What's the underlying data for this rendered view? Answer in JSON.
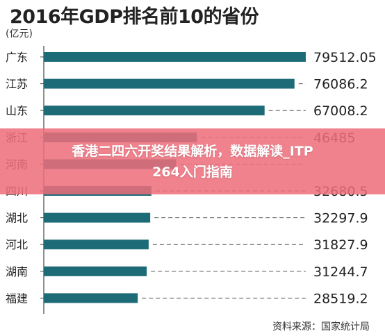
{
  "chart_data": {
    "type": "bar",
    "orientation": "horizontal",
    "title": "2016年GDP排名前10的省份",
    "unit": "(亿元)",
    "categories": [
      "广东",
      "江苏",
      "山东",
      "浙江",
      "河南",
      "四川",
      "湖北",
      "河北",
      "湖南",
      "福建"
    ],
    "values": [
      79512.05,
      76086.2,
      67008.2,
      46485,
      40160.01,
      32680.5,
      32297.9,
      31827.9,
      31244.7,
      28519.2
    ],
    "value_labels": [
      "79512.05",
      "76086.2",
      "67008.2",
      "46485",
      "",
      "32680.5",
      "32297.9",
      "31827.9",
      "31244.7",
      "28519.2"
    ],
    "xlim": [
      0,
      79512.05
    ],
    "grid": false,
    "bar_color": "#1e6b78",
    "source": "资料来源：国家统计局"
  },
  "overlay": {
    "line1": "香港二四六开奖结果解析，数据解读_ITP",
    "line2": "264入门指南",
    "color": "#ec6e7a"
  }
}
